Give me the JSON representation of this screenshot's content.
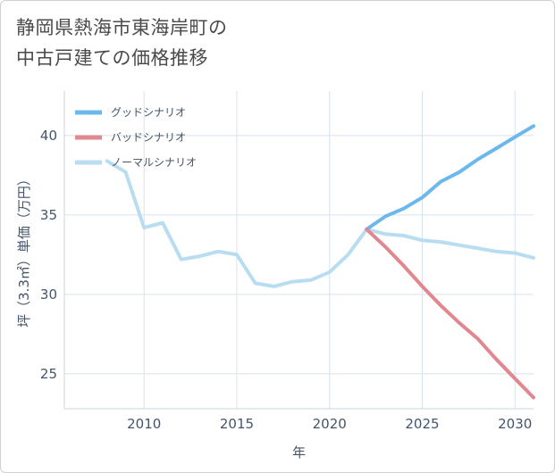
{
  "title": {
    "line1": "静岡県熱海市東海岸町の",
    "line2": "中古戸建ての価格推移"
  },
  "chart_data": {
    "type": "line",
    "xlabel": "年",
    "ylabel": "坪（3.3㎡）単価（万円）",
    "xlim": [
      2005.7,
      2031
    ],
    "ylim": [
      22.8,
      42.8
    ],
    "xticks": [
      2010,
      2015,
      2020,
      2025,
      2030
    ],
    "yticks": [
      25,
      30,
      35,
      40
    ],
    "grid": true,
    "legend_position": "top-left",
    "series": [
      {
        "name": "グッドシナリオ",
        "color": "#6cb8ec",
        "x": [
          2022,
          2023,
          2024,
          2025,
          2026,
          2027,
          2028,
          2029,
          2030,
          2031
        ],
        "y": [
          34.1,
          34.9,
          35.4,
          36.1,
          37.1,
          37.7,
          38.5,
          39.2,
          39.9,
          40.6
        ]
      },
      {
        "name": "バッドシナリオ",
        "color": "#e0878f",
        "x": [
          2022,
          2023,
          2024,
          2025,
          2026,
          2027,
          2028,
          2029,
          2030,
          2031
        ],
        "y": [
          34.1,
          33.0,
          31.8,
          30.5,
          29.3,
          28.2,
          27.2,
          25.9,
          24.7,
          23.5
        ]
      },
      {
        "name": "ノーマルシナリオ",
        "color": "#b9ddf0",
        "x": [
          2008,
          2009,
          2010,
          2011,
          2012,
          2013,
          2014,
          2015,
          2016,
          2017,
          2018,
          2019,
          2020,
          2021,
          2022,
          2023,
          2024,
          2025,
          2026,
          2027,
          2028,
          2029,
          2030,
          2031
        ],
        "y": [
          38.4,
          37.7,
          34.2,
          34.5,
          32.2,
          32.4,
          32.7,
          32.5,
          30.7,
          30.5,
          30.8,
          30.9,
          31.4,
          32.5,
          34.1,
          33.8,
          33.7,
          33.4,
          33.3,
          33.1,
          32.9,
          32.7,
          32.6,
          32.3
        ]
      }
    ]
  }
}
